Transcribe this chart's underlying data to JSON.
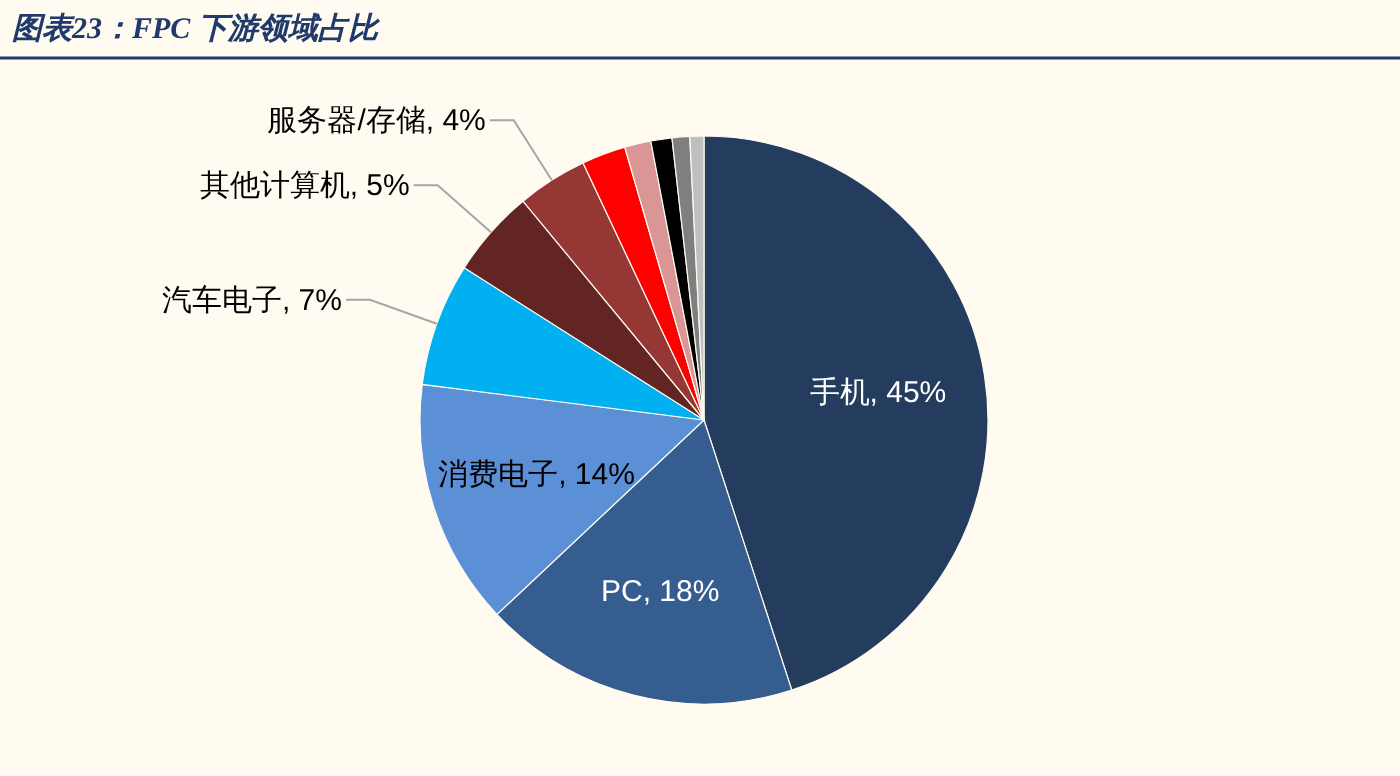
{
  "chart_data": {
    "type": "pie",
    "title": "图表23：FPC 下游领域占比",
    "categories": [
      "手机",
      "PC",
      "消费电子",
      "汽车电子",
      "其他计算机",
      "服务器/存储",
      null,
      null,
      null,
      null,
      null
    ],
    "values": [
      45,
      18,
      14,
      7,
      5,
      4,
      2.5,
      1.5,
      1.2,
      1,
      0.8
    ],
    "value_labels": [
      "45%",
      "18%",
      "14%",
      "7%",
      "5%",
      "4%",
      null,
      null,
      null,
      null,
      null
    ],
    "colors": [
      "#243c5e",
      "#355d8f",
      "#5b8fd6",
      "#00b0f0",
      "#632523",
      "#953735",
      "#ff0000",
      "#d99694",
      "#000000",
      "#7f7f7f",
      "#bfbfbf"
    ]
  }
}
